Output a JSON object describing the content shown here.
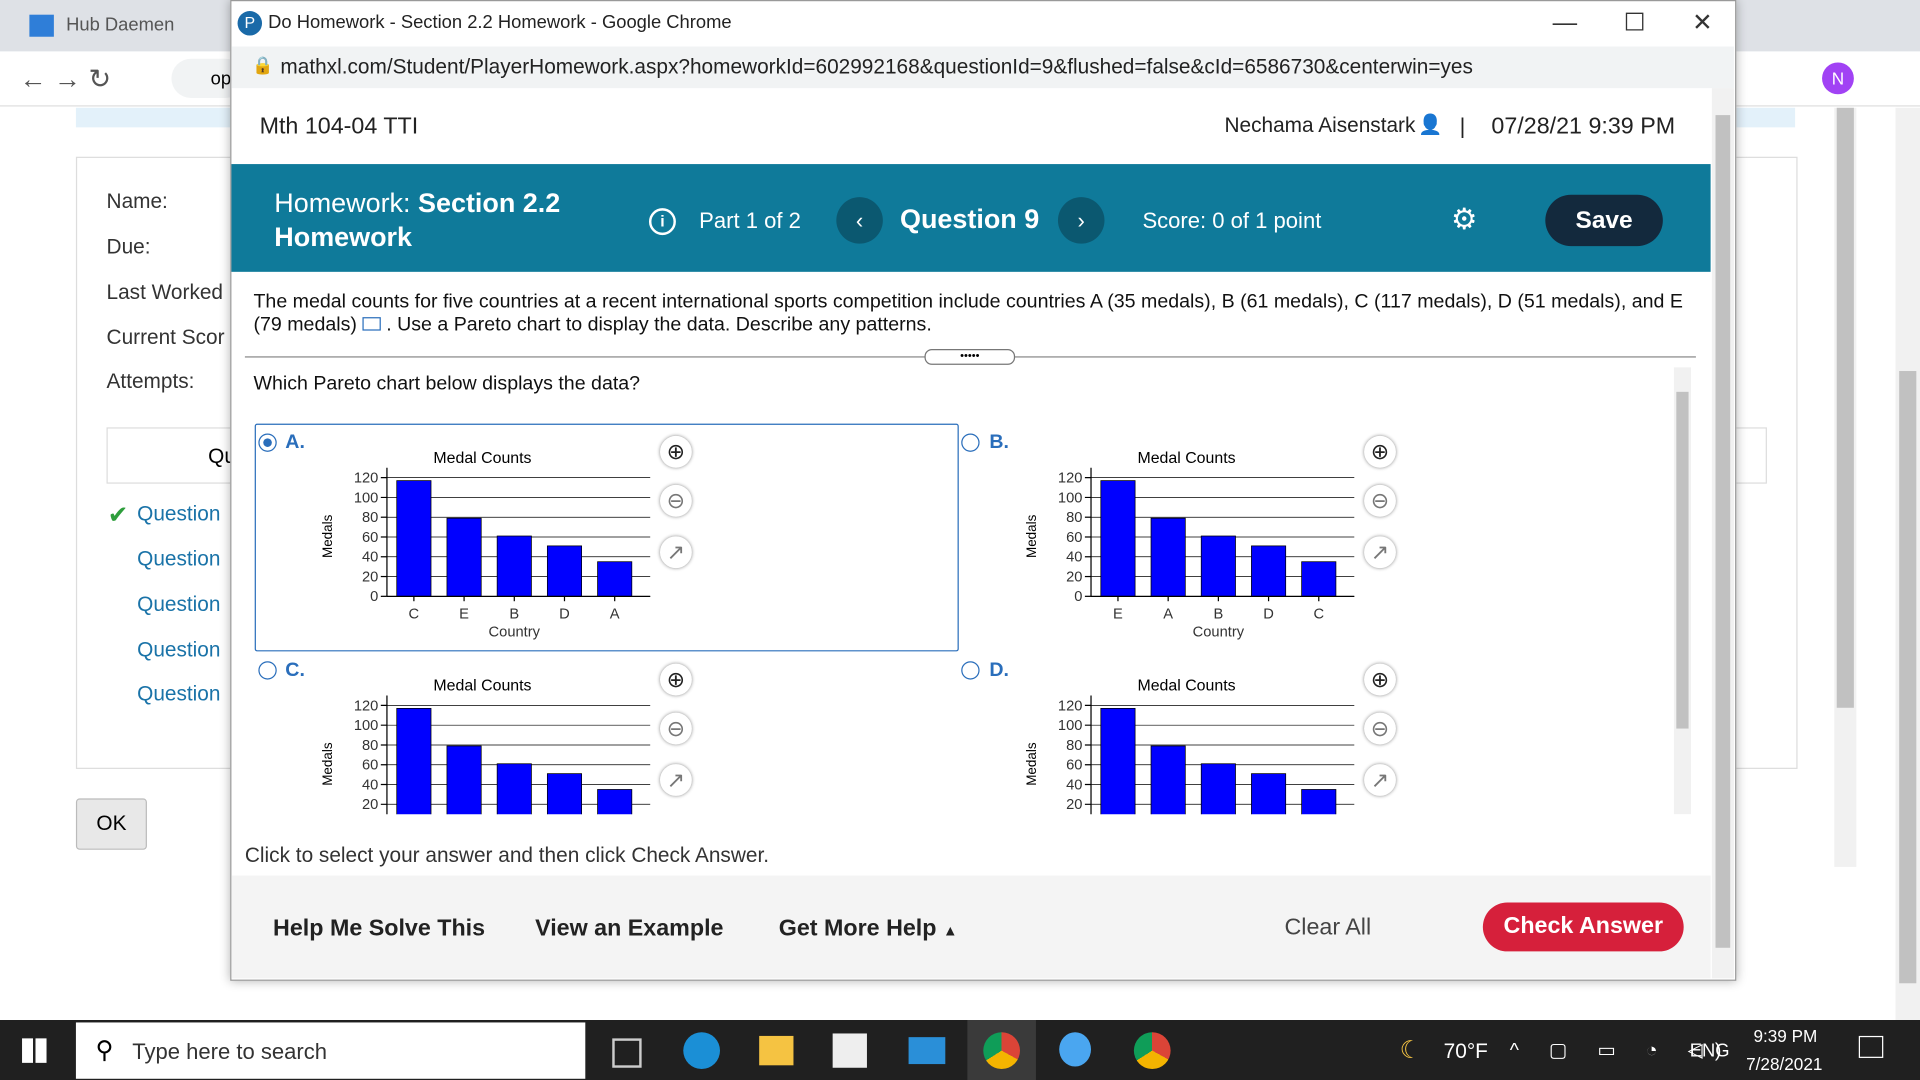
{
  "browser": {
    "back_tab": "Hub Daemen",
    "back_url": "op",
    "window_title": "Do Homework - Section 2.2 Homework - Google Chrome",
    "url": "mathxl.com/Student/PlayerHomework.aspx?homeworkId=602992168&questionId=9&flushed=false&cId=6586730&centerwin=yes",
    "avatar": "N"
  },
  "background_page": {
    "labels": [
      "Name:",
      "Due:",
      "Last Worked",
      "Current Scor",
      "Attempts:"
    ],
    "questions_header": "Qu",
    "questions": [
      "Question",
      "Question",
      "Question",
      "Question",
      "Question"
    ],
    "ok": "OK"
  },
  "header": {
    "course": "Mth 104-04 TTI",
    "user": "Nechama Aisenstark",
    "separator": "|",
    "datetime": "07/28/21 9:39 PM"
  },
  "toolbar": {
    "homework_label": "Homework:",
    "homework_name": "Section 2.2 Homework",
    "part": "Part 1 of 2",
    "question": "Question 9",
    "score": "Score: 0 of 1 point",
    "save": "Save"
  },
  "problem": {
    "text": "The medal counts for five countries at a recent international sports competition include countries A (35 medals), B (61 medals), C (117 medals), D (51 medals), and E (79 medals)",
    "text_after": ". Use a Pareto chart to display the data. Describe any patterns.",
    "prompt": "Which Pareto chart below displays the data?",
    "options": [
      "A.",
      "B.",
      "C.",
      "D."
    ],
    "selected": 0,
    "instruction": "Click to select your answer and then click Check Answer."
  },
  "chart_data": [
    {
      "type": "bar",
      "title": "Medal Counts",
      "xlabel": "Country",
      "ylabel": "Medals",
      "categories": [
        "C",
        "E",
        "B",
        "D",
        "A"
      ],
      "values": [
        117,
        79,
        61,
        51,
        35
      ],
      "color": "#0000ff",
      "ylim": [
        0,
        130
      ],
      "yticks": [
        0,
        20,
        40,
        60,
        80,
        100,
        120
      ],
      "grid": true
    },
    {
      "type": "bar",
      "title": "Medal Counts",
      "xlabel": "Country",
      "ylabel": "Medals",
      "categories": [
        "E",
        "A",
        "B",
        "D",
        "C"
      ],
      "values": [
        117,
        79,
        61,
        51,
        35
      ],
      "color": "#0000ff",
      "ylim": [
        0,
        130
      ],
      "yticks": [
        0,
        20,
        40,
        60,
        80,
        100,
        120
      ],
      "grid": true
    },
    {
      "type": "bar",
      "title": "Medal Counts",
      "ylabel": "Medals",
      "values": [
        117,
        79,
        61,
        51,
        35
      ],
      "color": "#0000ff",
      "ylim": [
        0,
        130
      ],
      "yticks": [
        20,
        40,
        60,
        80,
        100,
        120
      ],
      "grid": true
    },
    {
      "type": "bar",
      "title": "Medal Counts",
      "ylabel": "Medals",
      "values": [
        117,
        79,
        61,
        51,
        35
      ],
      "color": "#0000ff",
      "ylim": [
        0,
        130
      ],
      "yticks": [
        20,
        40,
        60,
        80,
        100,
        120
      ],
      "grid": true
    }
  ],
  "footer": {
    "help": "Help Me Solve This",
    "example": "View an Example",
    "more": "Get More Help",
    "clear": "Clear All",
    "check": "Check Answer"
  },
  "taskbar": {
    "search": "Type here to search",
    "weather": "70°F",
    "lang": "ENG",
    "time": "9:39 PM",
    "date": "7/28/2021"
  }
}
